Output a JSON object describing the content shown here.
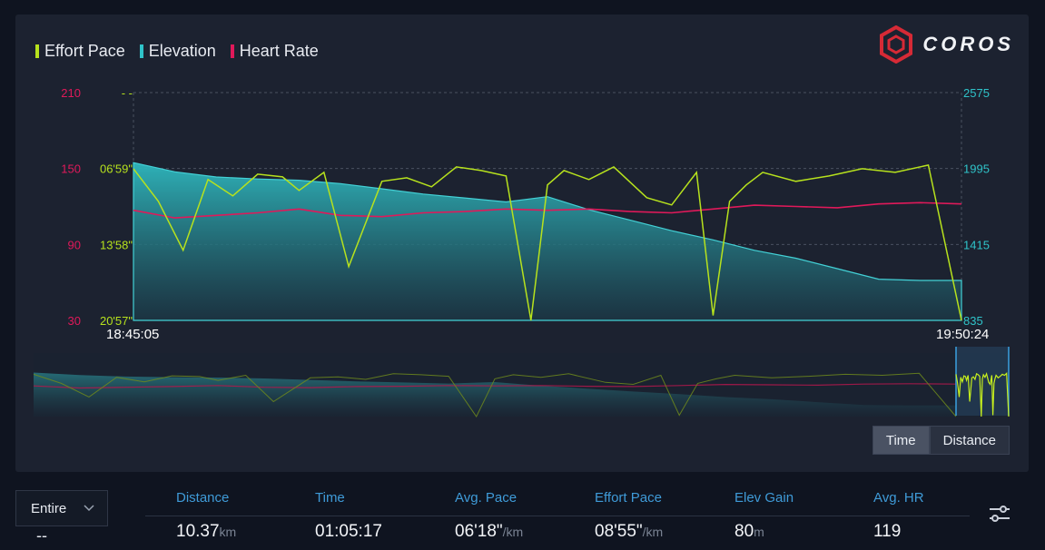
{
  "legend": [
    {
      "label": "Effort Pace",
      "color": "#b7e21d"
    },
    {
      "label": "Elevation",
      "color": "#2fc3c9"
    },
    {
      "label": "Heart Rate",
      "color": "#e0195a"
    }
  ],
  "brand": {
    "name": "COROS",
    "color": "#d62a36"
  },
  "chart_data": {
    "type": "line",
    "hr_axis": {
      "ticks": [
        "210",
        "150",
        "90",
        "30"
      ],
      "range": [
        30,
        210
      ],
      "color": "#e0195a"
    },
    "pace_axis": {
      "ticks": [
        "- -",
        "06'59\"",
        "13'58\"",
        "20'57\""
      ],
      "color": "#b7e21d"
    },
    "elevation_axis": {
      "ticks": [
        "2575",
        "1995",
        "1415",
        "835"
      ],
      "range": [
        835,
        2575
      ],
      "color": "#2fc3c9"
    },
    "x_axis": {
      "start": "18:45:05",
      "end": "19:50:24"
    },
    "grid": true,
    "series": [
      {
        "name": "Elevation",
        "x": [
          0,
          0.05,
          0.1,
          0.15,
          0.2,
          0.25,
          0.3,
          0.35,
          0.4,
          0.45,
          0.5,
          0.55,
          0.6,
          0.65,
          0.7,
          0.75,
          0.8,
          0.85,
          0.9,
          0.95,
          1
        ],
        "values": [
          2040,
          1970,
          1930,
          1915,
          1905,
          1880,
          1840,
          1800,
          1770,
          1740,
          1780,
          1680,
          1600,
          1520,
          1450,
          1370,
          1310,
          1230,
          1150,
          1140,
          1140
        ]
      },
      {
        "name": "Heart Rate",
        "x": [
          0,
          0.05,
          0.1,
          0.15,
          0.2,
          0.25,
          0.3,
          0.35,
          0.4,
          0.45,
          0.5,
          0.55,
          0.6,
          0.65,
          0.7,
          0.75,
          0.8,
          0.85,
          0.9,
          0.95,
          1
        ],
        "values": [
          117,
          111,
          113,
          115,
          118,
          113,
          112,
          115,
          116,
          118,
          117,
          118,
          116,
          115,
          118,
          121,
          120,
          119,
          122,
          123,
          122
        ]
      },
      {
        "name": "Effort Pace",
        "x": [
          0,
          0.03,
          0.06,
          0.09,
          0.12,
          0.15,
          0.18,
          0.2,
          0.23,
          0.26,
          0.3,
          0.33,
          0.36,
          0.39,
          0.42,
          0.45,
          0.48,
          0.5,
          0.52,
          0.55,
          0.58,
          0.62,
          0.65,
          0.68,
          0.7,
          0.72,
          0.74,
          0.76,
          0.8,
          0.84,
          0.88,
          0.92,
          0.96,
          1
        ],
        "values": [
          "7'00\"",
          "10'00\"",
          "14'30\"",
          "8'00\"",
          "9'30\"",
          "7'30\"",
          "7'45\"",
          "9'00\"",
          "7'20\"",
          "16'00\"",
          "8'10\"",
          "7'50\"",
          "8'40\"",
          "6'50\"",
          "7'10\"",
          "7'40\"",
          "20'57\"",
          "8'30\"",
          "7'10\"",
          "8'00\"",
          "6'50\"",
          "9'40\"",
          "10'20\"",
          "7'20\"",
          "20'30\"",
          "10'00\"",
          "8'30\"",
          "7'20\"",
          "8'10\"",
          "7'40\"",
          "7'00\"",
          "7'20\"",
          "6'40\"",
          "20'57\""
        ]
      }
    ]
  },
  "toggle": {
    "time": "Time",
    "distance": "Distance"
  },
  "range_select": {
    "value": "Entire",
    "row_value": "--"
  },
  "stats": [
    {
      "label": "Distance",
      "value": "10.37",
      "unit": "km"
    },
    {
      "label": "Time",
      "value": "01:05:17",
      "unit": ""
    },
    {
      "label": "Avg. Pace",
      "value": "06'18\"",
      "unit": "/km"
    },
    {
      "label": "Effort Pace",
      "value": "08'55\"",
      "unit": "/km"
    },
    {
      "label": "Elev Gain",
      "value": "80",
      "unit": "m"
    },
    {
      "label": "Avg. HR",
      "value": "119",
      "unit": ""
    }
  ]
}
